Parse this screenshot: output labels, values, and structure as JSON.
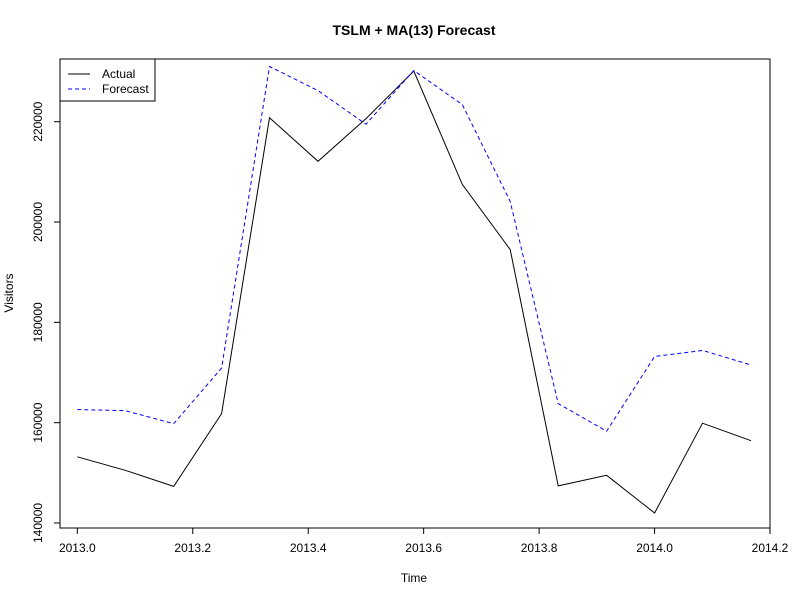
{
  "chart_data": {
    "type": "line",
    "title": "TSLM + MA(13) Forecast",
    "xlabel": "Time",
    "ylabel": "Visitors",
    "xlim": [
      2012.97,
      2014.2
    ],
    "ylim": [
      139000,
      232500
    ],
    "x_ticks": [
      2013.0,
      2013.2,
      2013.4,
      2013.6,
      2013.8,
      2014.0,
      2014.2
    ],
    "x_tick_labels": [
      "2013.0",
      "2013.2",
      "2013.4",
      "2013.6",
      "2013.8",
      "2014.0",
      "2014.2"
    ],
    "y_ticks": [
      140000,
      160000,
      180000,
      200000,
      220000
    ],
    "y_tick_labels": [
      "140000",
      "160000",
      "180000",
      "200000",
      "220000"
    ],
    "x": [
      2013.0,
      2013.083,
      2013.167,
      2013.25,
      2013.333,
      2013.417,
      2013.5,
      2013.583,
      2013.667,
      2013.75,
      2013.833,
      2013.917,
      2014.0,
      2014.083,
      2014.167
    ],
    "series": [
      {
        "name": "Actual",
        "color": "#000000",
        "dash": "solid",
        "values": [
          153200,
          150500,
          147300,
          161800,
          220800,
          212100,
          220600,
          230100,
          207500,
          194500,
          147400,
          149500,
          142000,
          159900,
          156400
        ]
      },
      {
        "name": "Forecast",
        "color": "#0000ff",
        "dash": "dashed",
        "values": [
          162600,
          162400,
          159800,
          170900,
          231000,
          226200,
          219500,
          230200,
          223400,
          204100,
          163800,
          158300,
          173200,
          174400,
          171500
        ]
      }
    ],
    "legend": "top-left",
    "grid": false
  }
}
